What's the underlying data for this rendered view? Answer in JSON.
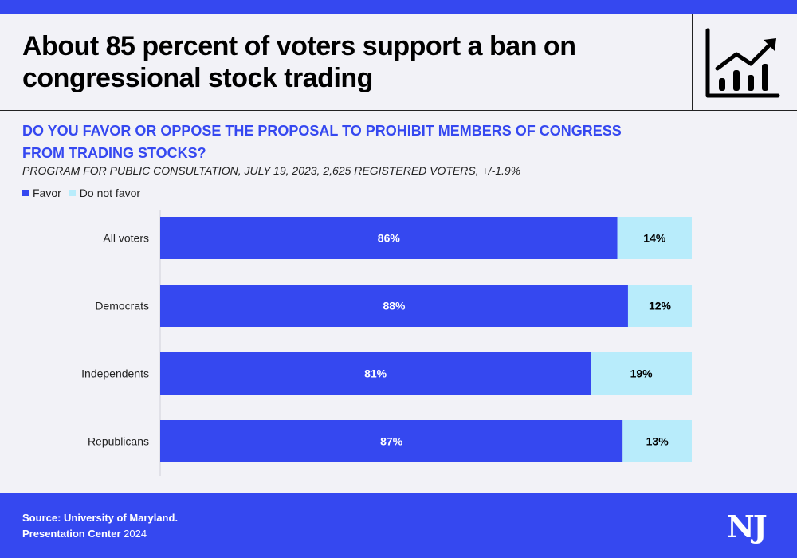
{
  "header": {
    "title_line1": "About 85 percent of voters support a ban on",
    "title_line2": "congressional stock trading",
    "icon": "chart-growth-icon"
  },
  "question": {
    "line1": "DO YOU  FAVOR OR OPPOSE THE PROPOSAL TO PROHIBIT MEMBERS OF CONGRESS",
    "line2": "FROM TRADING STOCKS?"
  },
  "subtitle": "PROGRAM FOR PUBLIC CONSULTATION, JULY 19, 2023, 2,625 REGISTERED VOTERS, +/-1.9%",
  "colors": {
    "favor": "#3548f0",
    "not_favor": "#b8ecfb",
    "accent": "#3548f0"
  },
  "chart_data": {
    "type": "bar",
    "orientation": "horizontal",
    "stacked": true,
    "categories": [
      "All voters",
      "Democrats",
      "Independents",
      "Republicans"
    ],
    "series": [
      {
        "name": "Favor",
        "values": [
          86,
          88,
          81,
          87
        ],
        "labels": [
          "86%",
          "88%",
          "81%",
          "87%"
        ]
      },
      {
        "name": "Do not favor",
        "values": [
          14,
          12,
          19,
          13
        ],
        "labels": [
          "14%",
          "12%",
          "19%",
          "13%"
        ]
      }
    ],
    "xlim": [
      0,
      100
    ],
    "legend": "top-left",
    "grid": false
  },
  "footer": {
    "source_label": "Source: University of Maryland.",
    "credit_bold": "Presentation Center",
    "credit_year": "2024",
    "logo": "NJ"
  }
}
